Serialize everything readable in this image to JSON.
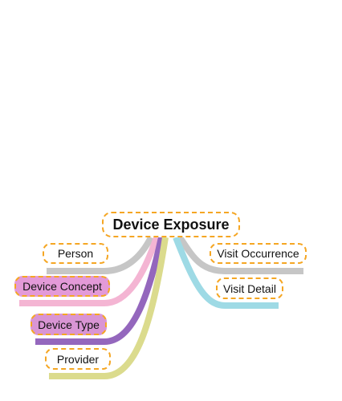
{
  "title": "Device Exposure",
  "left_branches": [
    {
      "label": "Person",
      "color": "#c6c6c6",
      "filled": false
    },
    {
      "label": "Device Concept",
      "color": "#f4b5d3",
      "filled": true
    },
    {
      "label": "Device Type",
      "color": "#9467bd",
      "filled": true
    },
    {
      "label": "Provider",
      "color": "#dbdb8d",
      "filled": false
    }
  ],
  "right_branches": [
    {
      "label": "Visit Occurrence",
      "color": "#c6c6c6",
      "filled": false
    },
    {
      "label": "Visit Detail",
      "color": "#9edae5",
      "filled": false
    }
  ],
  "node_border_color": "#f5a623",
  "filled_node_color": "#e39ad8"
}
